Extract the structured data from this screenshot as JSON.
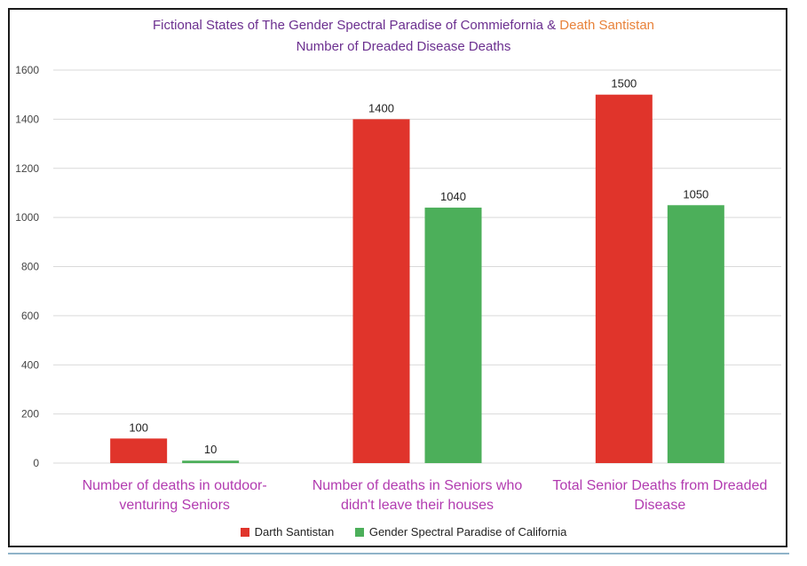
{
  "title_line1_a": "Fictional States of The Gender Spectral Paradise of ",
  "title_line1_b": "Commiefornia & ",
  "title_line1_c": "Death Santistan",
  "title_line2": "Number of Dreaded Disease Deaths",
  "colors": {
    "title_purple": "#6b2f8f",
    "title_orange": "#e8823a",
    "category_label": "#b23bb0",
    "series_red": "#e0342b",
    "series_green": "#4caf5a",
    "grid": "#d9d9d9",
    "frame": "#1a1a1a"
  },
  "chart_data": {
    "type": "bar",
    "categories": [
      "Number of deaths in outdoor-venturing Seniors",
      "Number of deaths in Seniors who didn't leave their houses",
      "Total Senior Deaths from Dreaded Disease"
    ],
    "category_lines": [
      [
        "Number of deaths in outdoor-",
        "venturing Seniors"
      ],
      [
        "Number of deaths in Seniors who",
        "didn't leave their houses"
      ],
      [
        "Total Senior Deaths from Dreaded",
        "Disease"
      ]
    ],
    "series": [
      {
        "name": "Darth Santistan",
        "values": [
          100,
          1400,
          1500
        ],
        "color": "#e0342b"
      },
      {
        "name": "Gender Spectral Paradise of California",
        "values": [
          10,
          1040,
          1050
        ],
        "color": "#4caf5a"
      }
    ],
    "ylim": [
      0,
      1600
    ],
    "yticks": [
      0,
      200,
      400,
      600,
      800,
      1000,
      1200,
      1400,
      1600
    ],
    "grid": true,
    "legend_position": "bottom",
    "data_labels": true
  }
}
